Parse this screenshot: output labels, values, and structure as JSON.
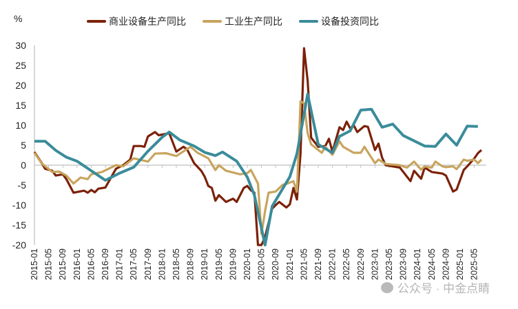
{
  "chart_data": {
    "type": "line",
    "title": "",
    "ylabel": "%",
    "xlabel": "",
    "ylim": [
      -20,
      30
    ],
    "yticks": [
      "30",
      "25",
      "20",
      "15",
      "10",
      "5",
      "0",
      "-5",
      "-10",
      "-15",
      "-20"
    ],
    "x_start": "2015-01",
    "frequency": "monthly",
    "xticks": [
      "2015-01",
      "2015-05",
      "2015-09",
      "2016-01",
      "2016-05",
      "2016-09",
      "2017-01",
      "2017-05",
      "2017-09",
      "2018-01",
      "2018-05",
      "2018-09",
      "2019-01",
      "2019-05",
      "2019-09",
      "2020-01",
      "2020-05",
      "2020-09",
      "2021-01",
      "2021-05",
      "2021-09",
      "2022-01",
      "2022-05",
      "2022-09",
      "2023-01",
      "2023-05",
      "2023-09",
      "2024-01",
      "2024-05",
      "2024-09",
      "2025-01",
      "2025-05"
    ],
    "legend_position": "top",
    "grid": false,
    "series": [
      {
        "name": "商业设备生产同比",
        "color": "#7B2108",
        "points": [
          [
            "2015-01",
            3.3
          ],
          [
            "2015-03",
            0.6
          ],
          [
            "2015-04",
            -0.9
          ],
          [
            "2015-06",
            -1.4
          ],
          [
            "2015-07",
            -2.6
          ],
          [
            "2015-09",
            -2.3
          ],
          [
            "2015-10",
            -3.5
          ],
          [
            "2015-12",
            -6.9
          ],
          [
            "2016-03",
            -6.4
          ],
          [
            "2016-04",
            -6.9
          ],
          [
            "2016-05",
            -6.2
          ],
          [
            "2016-06",
            -6.8
          ],
          [
            "2016-07",
            -5.9
          ],
          [
            "2016-09",
            -5.6
          ],
          [
            "2016-10",
            -4.0
          ],
          [
            "2016-12",
            -0.9
          ],
          [
            "2017-02",
            0.0
          ],
          [
            "2017-04",
            1.4
          ],
          [
            "2017-05",
            4.8
          ],
          [
            "2017-07",
            4.8
          ],
          [
            "2017-08",
            4.6
          ],
          [
            "2017-09",
            7.2
          ],
          [
            "2017-11",
            8.3
          ],
          [
            "2017-12",
            7.5
          ],
          [
            "2018-03",
            8.0
          ],
          [
            "2018-05",
            3.4
          ],
          [
            "2018-07",
            4.6
          ],
          [
            "2018-08",
            4.0
          ],
          [
            "2018-10",
            0.5
          ],
          [
            "2018-12",
            -1.4
          ],
          [
            "2019-01",
            -2.9
          ],
          [
            "2019-02",
            -5.2
          ],
          [
            "2019-03",
            -5.7
          ],
          [
            "2019-04",
            -8.9
          ],
          [
            "2019-05",
            -7.5
          ],
          [
            "2019-07",
            -9.2
          ],
          [
            "2019-09",
            -8.4
          ],
          [
            "2019-10",
            -9.2
          ],
          [
            "2019-12",
            -5.7
          ],
          [
            "2020-01",
            -5.2
          ],
          [
            "2020-02",
            -6.3
          ],
          [
            "2020-03",
            -6.9
          ],
          [
            "2020-04",
            -20.0
          ],
          [
            "2020-05",
            -20.0
          ],
          [
            "2020-06",
            -18.0
          ],
          [
            "2020-08",
            -10.9
          ],
          [
            "2020-09",
            -10.0
          ],
          [
            "2020-10",
            -9.2
          ],
          [
            "2020-12",
            -10.6
          ],
          [
            "2021-01",
            -9.8
          ],
          [
            "2021-02",
            -5.7
          ],
          [
            "2021-03",
            -8.6
          ],
          [
            "2021-04",
            2.9
          ],
          [
            "2021-05",
            29.3
          ],
          [
            "2021-06",
            21.2
          ],
          [
            "2021-07",
            6.9
          ],
          [
            "2021-09",
            4.6
          ],
          [
            "2021-11",
            4.8
          ],
          [
            "2021-12",
            6.6
          ],
          [
            "2022-01",
            3.4
          ],
          [
            "2022-03",
            9.5
          ],
          [
            "2022-04",
            8.8
          ],
          [
            "2022-05",
            10.9
          ],
          [
            "2022-06",
            9.2
          ],
          [
            "2022-07",
            10.0
          ],
          [
            "2022-08",
            8.3
          ],
          [
            "2022-10",
            9.8
          ],
          [
            "2022-11",
            9.6
          ],
          [
            "2023-01",
            3.8
          ],
          [
            "2023-02",
            5.4
          ],
          [
            "2023-03",
            1.9
          ],
          [
            "2023-04",
            0.0
          ],
          [
            "2023-08",
            -0.6
          ],
          [
            "2023-11",
            -4.0
          ],
          [
            "2023-12",
            -1.4
          ],
          [
            "2024-02",
            -3.4
          ],
          [
            "2024-03",
            -0.6
          ],
          [
            "2024-05",
            -1.7
          ],
          [
            "2024-08",
            -2.1
          ],
          [
            "2024-09",
            -2.6
          ],
          [
            "2024-11",
            -6.6
          ],
          [
            "2024-12",
            -6.1
          ],
          [
            "2025-02",
            -1.2
          ],
          [
            "2025-03",
            -0.3
          ],
          [
            "2025-05",
            1.7
          ],
          [
            "2025-06",
            3.0
          ],
          [
            "2025-07",
            3.8
          ]
        ]
      },
      {
        "name": "工业生产同比",
        "color": "#C8A45E",
        "points": [
          [
            "2015-01",
            3.1
          ],
          [
            "2015-03",
            0.5
          ],
          [
            "2015-06",
            -1.7
          ],
          [
            "2015-08",
            -1.6
          ],
          [
            "2015-10",
            -2.6
          ],
          [
            "2015-12",
            -4.6
          ],
          [
            "2016-02",
            -3.1
          ],
          [
            "2016-04",
            -3.5
          ],
          [
            "2016-05",
            -2.3
          ],
          [
            "2016-08",
            -1.7
          ],
          [
            "2016-12",
            0.0
          ],
          [
            "2017-02",
            -0.3
          ],
          [
            "2017-05",
            1.7
          ],
          [
            "2017-09",
            0.9
          ],
          [
            "2017-11",
            2.9
          ],
          [
            "2018-02",
            3.0
          ],
          [
            "2018-05",
            2.3
          ],
          [
            "2018-09",
            4.6
          ],
          [
            "2018-11",
            3.1
          ],
          [
            "2019-02",
            1.7
          ],
          [
            "2019-04",
            -1.2
          ],
          [
            "2019-05",
            0.0
          ],
          [
            "2019-07",
            -1.4
          ],
          [
            "2019-11",
            -2.3
          ],
          [
            "2020-01",
            -2.0
          ],
          [
            "2020-02",
            -1.2
          ],
          [
            "2020-04",
            -4.6
          ],
          [
            "2020-05",
            -17.2
          ],
          [
            "2020-06",
            -11.5
          ],
          [
            "2020-07",
            -6.9
          ],
          [
            "2020-09",
            -6.6
          ],
          [
            "2020-11",
            -4.9
          ],
          [
            "2020-12",
            -4.7
          ],
          [
            "2021-02",
            -4.0
          ],
          [
            "2021-03",
            -6.6
          ],
          [
            "2021-04",
            16.0
          ],
          [
            "2021-05",
            15.5
          ],
          [
            "2021-06",
            8.0
          ],
          [
            "2021-07",
            5.2
          ],
          [
            "2021-10",
            3.1
          ],
          [
            "2021-11",
            4.6
          ],
          [
            "2022-01",
            2.6
          ],
          [
            "2022-03",
            6.0
          ],
          [
            "2022-04",
            4.6
          ],
          [
            "2022-07",
            3.1
          ],
          [
            "2022-09",
            3.1
          ],
          [
            "2022-10",
            4.6
          ],
          [
            "2023-01",
            0.5
          ],
          [
            "2023-02",
            1.4
          ],
          [
            "2023-04",
            0.3
          ],
          [
            "2023-08",
            0.0
          ],
          [
            "2023-10",
            -0.6
          ],
          [
            "2023-12",
            0.9
          ],
          [
            "2024-02",
            -1.1
          ],
          [
            "2024-03",
            -0.3
          ],
          [
            "2024-05",
            -0.6
          ],
          [
            "2024-06",
            0.9
          ],
          [
            "2024-08",
            -0.3
          ],
          [
            "2024-09",
            -0.5
          ],
          [
            "2024-11",
            -0.3
          ],
          [
            "2024-12",
            -1.0
          ],
          [
            "2025-02",
            1.4
          ],
          [
            "2025-03",
            1.1
          ],
          [
            "2025-05",
            1.4
          ],
          [
            "2025-06",
            0.5
          ],
          [
            "2025-07",
            1.4
          ]
        ]
      },
      {
        "name": "设备投资同比",
        "color": "#3A8C9A",
        "points": [
          [
            "2015-01",
            6.0
          ],
          [
            "2015-04",
            6.0
          ],
          [
            "2015-07",
            3.7
          ],
          [
            "2015-10",
            2.0
          ],
          [
            "2016-01",
            1.0
          ],
          [
            "2016-04",
            -0.8
          ],
          [
            "2016-09",
            -3.8
          ],
          [
            "2017-01",
            -2.0
          ],
          [
            "2017-05",
            -0.5
          ],
          [
            "2017-09",
            3.5
          ],
          [
            "2018-01",
            7.0
          ],
          [
            "2018-03",
            8.3
          ],
          [
            "2018-06",
            6.3
          ],
          [
            "2018-10",
            4.8
          ],
          [
            "2019-01",
            3.2
          ],
          [
            "2019-04",
            2.4
          ],
          [
            "2019-06",
            3.3
          ],
          [
            "2019-10",
            1.0
          ],
          [
            "2020-01",
            -3.0
          ],
          [
            "2020-03",
            -7.5
          ],
          [
            "2020-06",
            -20.0
          ],
          [
            "2020-08",
            -10.3
          ],
          [
            "2021-01",
            -2.9
          ],
          [
            "2021-03",
            2.9
          ],
          [
            "2021-06",
            17.8
          ],
          [
            "2021-09",
            5.2
          ],
          [
            "2022-01",
            3.1
          ],
          [
            "2022-03",
            7.2
          ],
          [
            "2022-06",
            8.6
          ],
          [
            "2022-09",
            13.8
          ],
          [
            "2022-12",
            14.0
          ],
          [
            "2023-03",
            9.5
          ],
          [
            "2023-06",
            10.3
          ],
          [
            "2023-09",
            7.4
          ],
          [
            "2024-03",
            4.8
          ],
          [
            "2024-06",
            4.7
          ],
          [
            "2024-09",
            7.8
          ],
          [
            "2024-12",
            5.0
          ],
          [
            "2025-03",
            9.8
          ],
          [
            "2025-06",
            9.7
          ]
        ]
      }
    ]
  },
  "watermark": "公众号 · 中金点睛"
}
